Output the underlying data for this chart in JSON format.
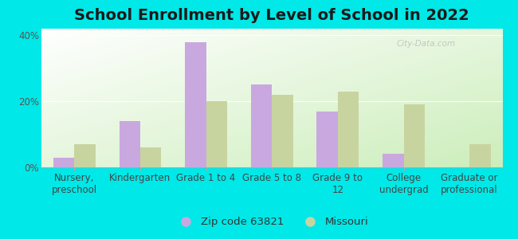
{
  "title": "School Enrollment by Level of School in 2022",
  "categories": [
    "Nursery,\npreschool",
    "Kindergarten",
    "Grade 1 to 4",
    "Grade 5 to 8",
    "Grade 9 to\n12",
    "College\nundergrad",
    "Graduate or\nprofessional"
  ],
  "zip_values": [
    3,
    14,
    38,
    25,
    17,
    4,
    0
  ],
  "mo_values": [
    7,
    6,
    20,
    22,
    23,
    19,
    7
  ],
  "zip_color": "#c9a8e0",
  "mo_color": "#c8d4a0",
  "background": "#00e8e8",
  "ylim": [
    0,
    42
  ],
  "yticks": [
    0,
    20,
    40
  ],
  "ytick_labels": [
    "0%",
    "20%",
    "40%"
  ],
  "legend_zip_label": "Zip code 63821",
  "legend_mo_label": "Missouri",
  "watermark": "City-Data.com",
  "title_fontsize": 14,
  "tick_fontsize": 8.5,
  "legend_fontsize": 9.5,
  "bar_width": 0.32
}
